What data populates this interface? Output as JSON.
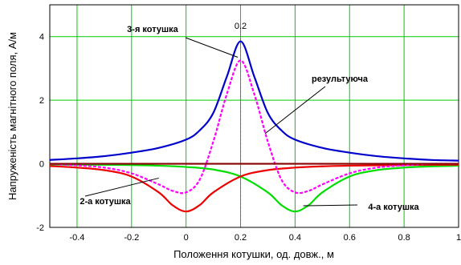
{
  "chart_data": {
    "type": "line",
    "title": "",
    "xlabel": "Положення котушки, од. довж., м",
    "ylabel": "Напруженість магнітного поля, А/м",
    "xlim": [
      -0.5,
      1.0
    ],
    "ylim": [
      -2,
      5
    ],
    "x_ticks": [
      -0.4,
      -0.2,
      0,
      0.2,
      0.4,
      0.6,
      0.8,
      1
    ],
    "x_tick_labels": [
      "-0.4",
      "-0.2",
      "0",
      "0.2",
      "0.4",
      "0.6",
      "0.8",
      "1"
    ],
    "y_ticks": [
      -2,
      0,
      2,
      4
    ],
    "y_tick_labels": [
      "-2",
      "0",
      "2",
      "4"
    ],
    "grid": true,
    "marker": {
      "x": 0.2,
      "label": "0.2"
    },
    "series": [
      {
        "name": "3-я котушка",
        "color": "#0000cc",
        "dash": "solid",
        "x": [
          -0.5,
          -0.4,
          -0.3,
          -0.2,
          -0.1,
          0.0,
          0.05,
          0.1,
          0.15,
          0.2,
          0.25,
          0.3,
          0.35,
          0.4,
          0.5,
          0.6,
          0.7,
          0.8,
          0.9,
          1.0
        ],
        "y": [
          0.12,
          0.17,
          0.24,
          0.35,
          0.5,
          0.76,
          1.05,
          1.6,
          2.75,
          3.85,
          2.75,
          1.6,
          1.05,
          0.76,
          0.5,
          0.35,
          0.24,
          0.17,
          0.12,
          0.1
        ]
      },
      {
        "name": "результуюча",
        "color": "#ff00ff",
        "dash": "dashed",
        "x": [
          -0.5,
          -0.4,
          -0.3,
          -0.2,
          -0.1,
          -0.05,
          0.0,
          0.05,
          0.1,
          0.15,
          0.2,
          0.25,
          0.3,
          0.35,
          0.4,
          0.45,
          0.5,
          0.6,
          0.7,
          0.8,
          0.9,
          1.0
        ],
        "y": [
          0.0,
          -0.05,
          -0.12,
          -0.3,
          -0.65,
          -0.85,
          -0.9,
          -0.5,
          0.7,
          2.2,
          3.25,
          2.2,
          0.7,
          -0.5,
          -0.9,
          -0.85,
          -0.65,
          -0.3,
          -0.12,
          -0.05,
          0.0,
          0.0
        ]
      },
      {
        "name": "2-а котушка",
        "color": "#ee0000",
        "dash": "solid",
        "x": [
          -0.5,
          -0.4,
          -0.3,
          -0.2,
          -0.1,
          -0.05,
          0.0,
          0.05,
          0.1,
          0.2,
          0.3,
          0.4,
          0.5,
          0.6,
          0.7,
          0.8,
          0.9,
          1.0
        ],
        "y": [
          -0.07,
          -0.12,
          -0.2,
          -0.4,
          -0.9,
          -1.3,
          -1.5,
          -1.3,
          -0.9,
          -0.4,
          -0.2,
          -0.12,
          -0.08,
          -0.06,
          -0.05,
          -0.04,
          -0.03,
          -0.03
        ]
      },
      {
        "name": "4-а котушка",
        "color": "#00dd00",
        "dash": "solid",
        "x": [
          -0.5,
          -0.4,
          -0.3,
          -0.2,
          -0.1,
          0.0,
          0.1,
          0.2,
          0.3,
          0.35,
          0.4,
          0.45,
          0.5,
          0.6,
          0.7,
          0.8,
          0.9,
          1.0
        ],
        "y": [
          -0.02,
          -0.03,
          -0.03,
          -0.04,
          -0.06,
          -0.1,
          -0.18,
          -0.4,
          -0.9,
          -1.3,
          -1.5,
          -1.3,
          -0.9,
          -0.4,
          -0.2,
          -0.12,
          -0.08,
          -0.06
        ]
      },
      {
        "name": "",
        "color": "#880000",
        "dash": "solid",
        "x": [
          -0.5,
          1.0
        ],
        "y": [
          0.0,
          0.0
        ]
      }
    ],
    "annotations": [
      {
        "text": "3-я котушка",
        "series": "3-я котушка",
        "point_x": 0.19,
        "point_y": 3.35
      },
      {
        "text": "результуюча",
        "series": "результуюча",
        "point_x": 0.29,
        "point_y": 0.95
      },
      {
        "text": "2-а котушка",
        "series": "2-а котушка",
        "point_x": -0.1,
        "point_y": -0.45
      },
      {
        "text": "4-а  котушка",
        "series": "4-а котушка",
        "point_x": 0.43,
        "point_y": -1.32
      }
    ]
  }
}
